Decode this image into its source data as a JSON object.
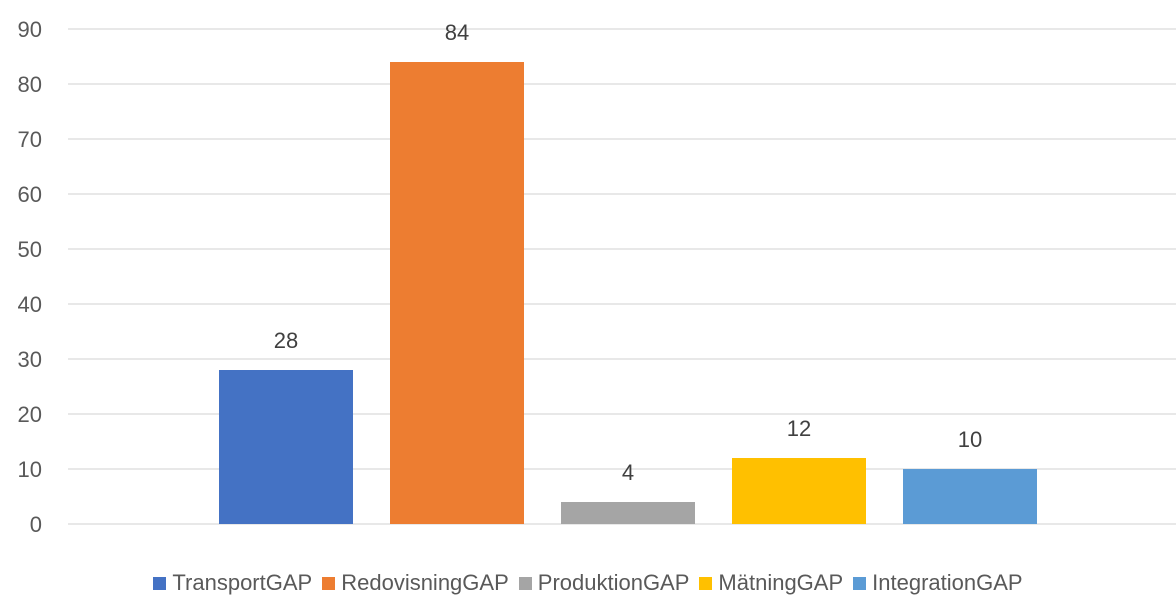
{
  "chart_data": {
    "type": "bar",
    "categories": [
      "TransportGAP",
      "RedovisningGAP",
      "ProduktionGAP",
      "MätningGAP",
      "IntegrationGAP"
    ],
    "values": [
      28,
      84,
      4,
      12,
      10
    ],
    "colors": [
      "#4472C4",
      "#ED7D31",
      "#A5A5A5",
      "#FFC000",
      "#5B9BD5"
    ],
    "y_ticks": [
      "0",
      "10",
      "20",
      "30",
      "40",
      "50",
      "60",
      "70",
      "80",
      "90"
    ],
    "ylim": [
      0,
      90
    ],
    "grid": true,
    "data_labels": [
      "28",
      "84",
      "4",
      "12",
      "10"
    ],
    "legend_position": "bottom"
  }
}
